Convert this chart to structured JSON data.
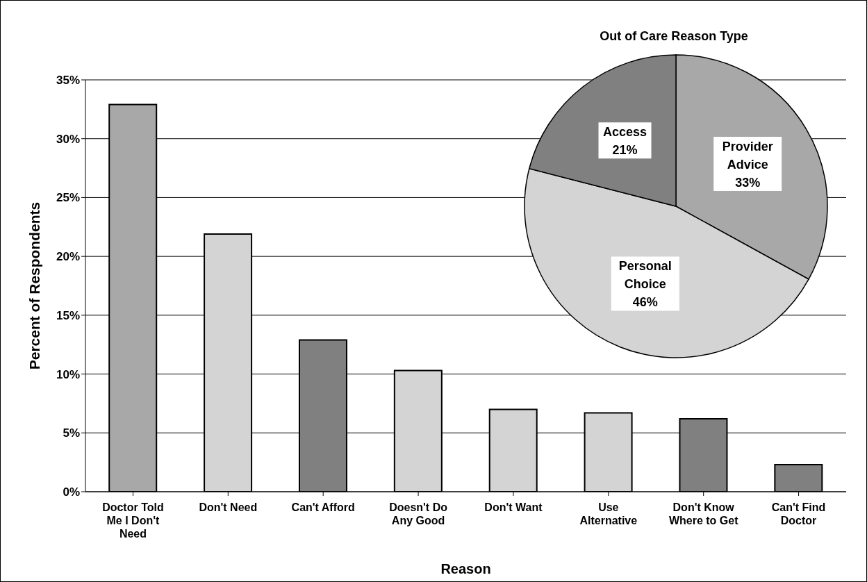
{
  "chart_data": [
    {
      "type": "bar",
      "xlabel": "Reason",
      "ylabel": "Percent of Respondents",
      "categories": [
        "Doctor Told Me I Don't Need",
        "Don't Need",
        "Can't Afford",
        "Doesn't Do Any Good",
        "Don't Want",
        "Use Alternative",
        "Don't Know Where to Get",
        "Can't Find Doctor"
      ],
      "values": [
        32.9,
        21.9,
        12.9,
        10.3,
        7.0,
        6.7,
        6.2,
        2.3
      ],
      "colors": [
        "#a8a8a8",
        "#d4d4d4",
        "#808080",
        "#d4d4d4",
        "#d4d4d4",
        "#d4d4d4",
        "#808080",
        "#808080"
      ],
      "ylim": [
        0,
        35
      ],
      "yticks": [
        {
          "value": 0,
          "label": "0%"
        },
        {
          "value": 5,
          "label": "5%"
        },
        {
          "value": 10,
          "label": "10%"
        },
        {
          "value": 15,
          "label": "15%"
        },
        {
          "value": 20,
          "label": "20%"
        },
        {
          "value": 25,
          "label": "25%"
        },
        {
          "value": 30,
          "label": "30%"
        },
        {
          "value": 35,
          "label": "35%"
        }
      ],
      "grid": "y"
    },
    {
      "type": "pie",
      "title": "Out of Care Reason Type",
      "categories": [
        "Provider Advice",
        "Personal Choice",
        "Access"
      ],
      "values": [
        33,
        46,
        21
      ],
      "colors": [
        "#a8a8a8",
        "#d4d4d4",
        "#808080"
      ],
      "value_labels": [
        "33%",
        "46%",
        "21%"
      ]
    }
  ]
}
